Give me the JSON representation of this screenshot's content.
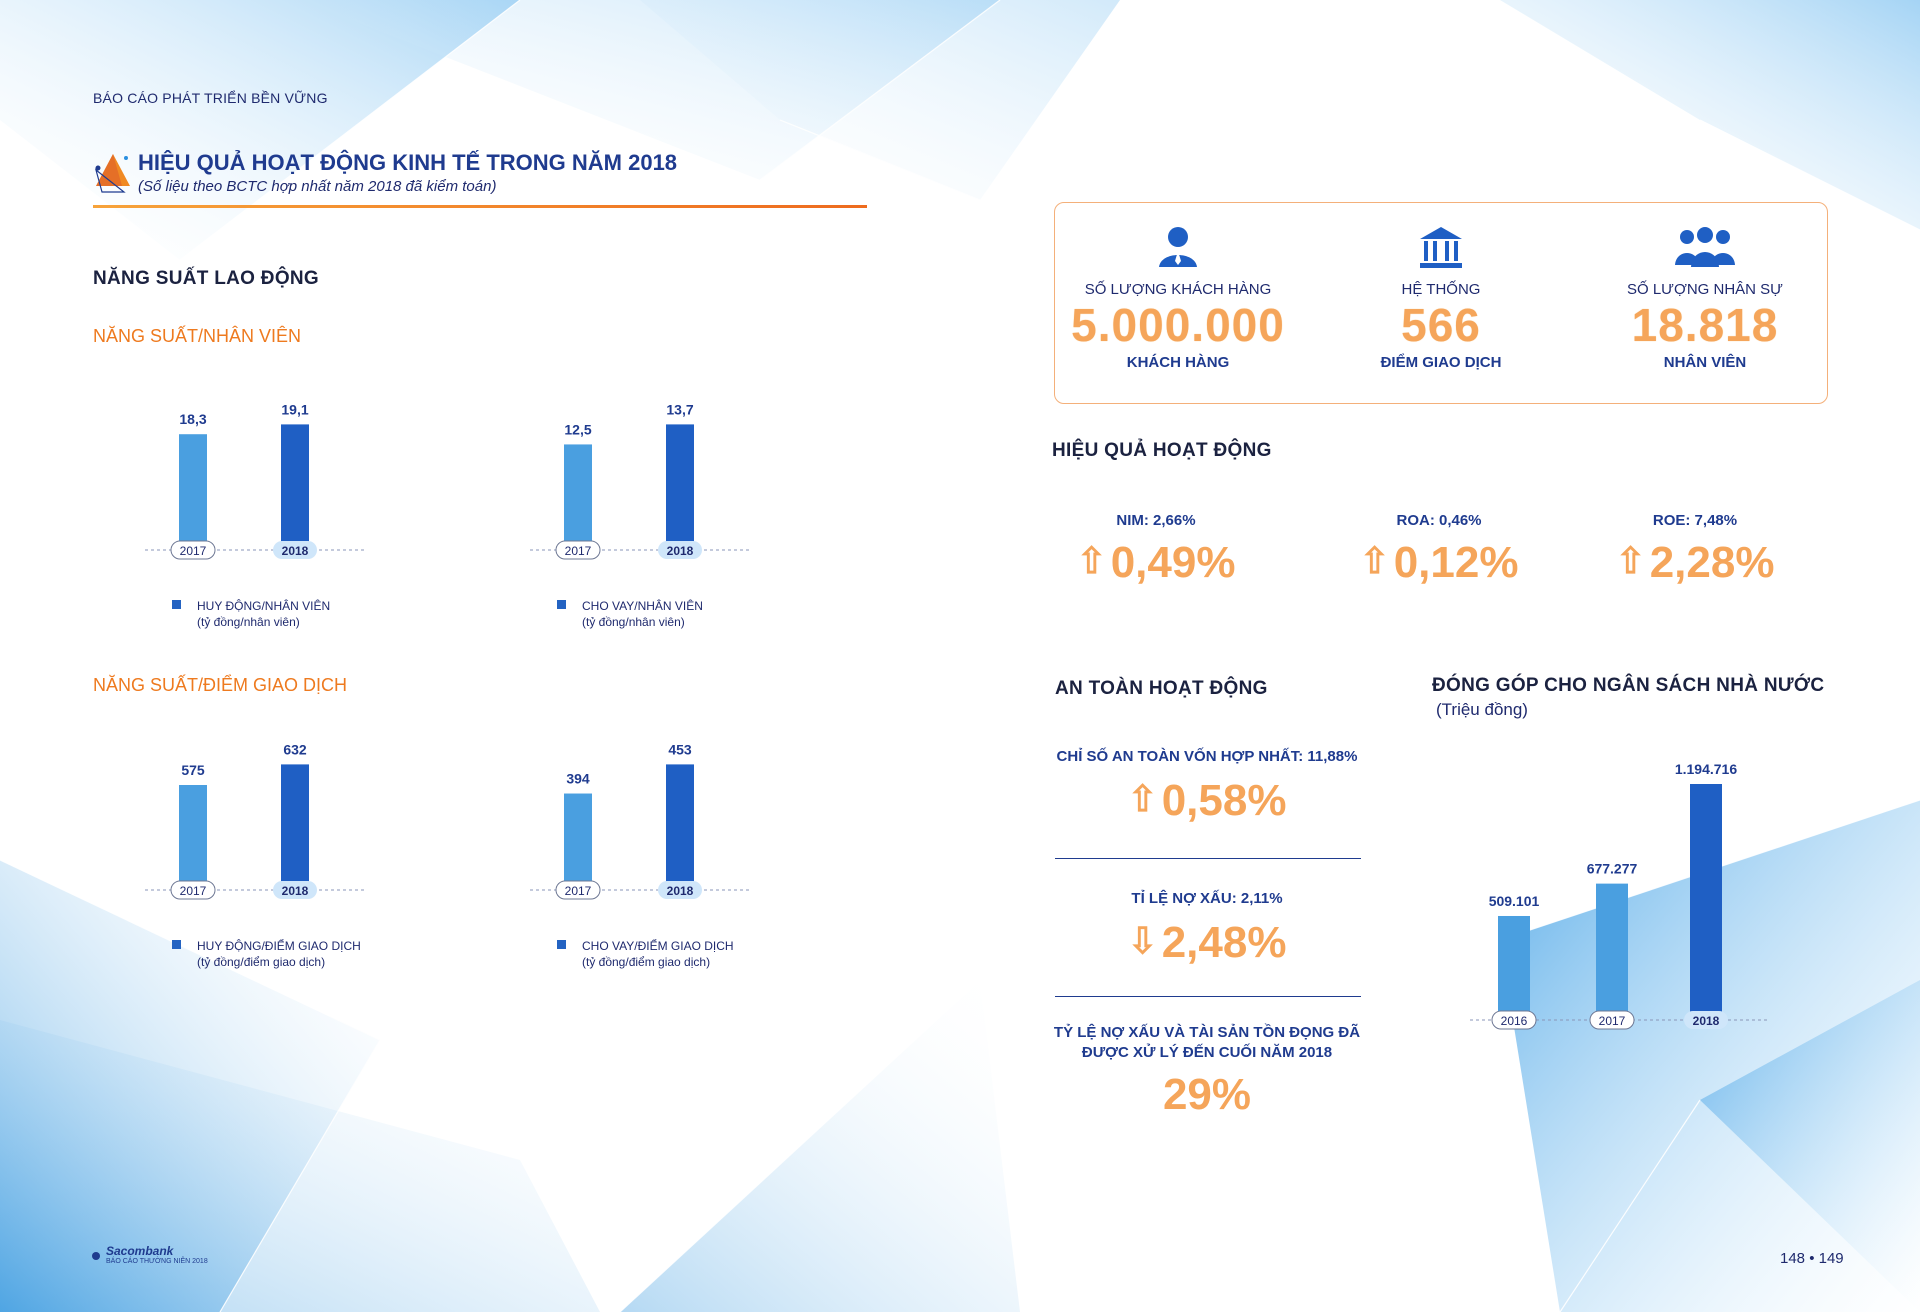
{
  "header": {
    "kicker": "BÁO CÁO PHÁT TRIỂN BỀN VỮNG",
    "title": "HIỆU QUẢ HOẠT ĐỘNG KINH TẾ TRONG NĂM 2018",
    "subtitle": "(Số liệu theo BCTC hợp nhất năm 2018 đã kiểm toán)"
  },
  "labor": {
    "heading": "NĂNG SUẤT LAO ĐỘNG",
    "per_employee_heading": "NĂNG SUẤT/NHÂN VIÊN",
    "per_branch_heading": "NĂNG SUẤT/ĐIỂM GIAO DỊCH"
  },
  "chart_data": [
    {
      "type": "bar",
      "categories": [
        "2017",
        "2018"
      ],
      "values": [
        18.3,
        19.1
      ],
      "value_labels": [
        "18,3",
        "19,1"
      ],
      "legend": "HUY ĐỘNG/NHÂN VIÊN",
      "unit": "(tỷ đồng/nhân viên)"
    },
    {
      "type": "bar",
      "categories": [
        "2017",
        "2018"
      ],
      "values": [
        12.5,
        13.7
      ],
      "value_labels": [
        "12,5",
        "13,7"
      ],
      "legend": "CHO VAY/NHÂN VIÊN",
      "unit": "(tỷ đồng/nhân viên)"
    },
    {
      "type": "bar",
      "categories": [
        "2017",
        "2018"
      ],
      "values": [
        575,
        632
      ],
      "value_labels": [
        "575",
        "632"
      ],
      "legend": "HUY ĐỘNG/ĐIỂM GIAO DỊCH",
      "unit": "(tỷ đồng/điểm giao dịch)"
    },
    {
      "type": "bar",
      "categories": [
        "2017",
        "2018"
      ],
      "values": [
        394,
        453
      ],
      "value_labels": [
        "394",
        "453"
      ],
      "legend": "CHO VAY/ĐIỂM GIAO DỊCH",
      "unit": "(tỷ đồng/điểm giao dịch)"
    },
    {
      "type": "bar",
      "title": "ĐÓNG GÓP CHO NGÂN SÁCH NHÀ NƯỚC",
      "unit": "(Triệu đồng)",
      "categories": [
        "2016",
        "2017",
        "2018"
      ],
      "values": [
        509101,
        677277,
        1194716
      ],
      "value_labels": [
        "509.101",
        "677.277",
        "1.194.716"
      ]
    }
  ],
  "kpis": [
    {
      "icon": "customer-icon",
      "label": "SỐ LƯỢNG KHÁCH HÀNG",
      "value": "5.000.000",
      "caption": "KHÁCH HÀNG"
    },
    {
      "icon": "bank-building-icon",
      "label": "HỆ THỐNG",
      "value": "566",
      "caption": "ĐIỂM GIAO DỊCH"
    },
    {
      "icon": "staff-group-icon",
      "label": "SỐ LƯỢNG NHÂN SỰ",
      "value": "18.818",
      "caption": "NHÂN VIÊN"
    }
  ],
  "performance": {
    "heading": "HIỆU QUẢ HOẠT ĐỘNG",
    "items": [
      {
        "label": "NIM: 2,66%",
        "change": "0,49%",
        "direction": "up"
      },
      {
        "label": "ROA: 0,46%",
        "change": "0,12%",
        "direction": "up"
      },
      {
        "label": "ROE: 7,48%",
        "change": "2,28%",
        "direction": "up"
      }
    ]
  },
  "safety": {
    "heading": "AN TOÀN HOẠT ĐỘNG",
    "items": [
      {
        "label": "CHỈ SỐ AN TOÀN VỐN HỢP NHẤT: 11,88%",
        "change": "0,58%",
        "arrow": "⇧"
      },
      {
        "label": "TỈ LỆ NỢ XẤU: 2,11%",
        "change": "2,48%",
        "arrow": "⇩"
      },
      {
        "label": "TỶ LỆ NỢ XẤU VÀ TÀI SẢN TỒN ĐỌNG ĐÃ ĐƯỢC XỬ LÝ ĐẾN CUỐI NĂM 2018",
        "change": "29%",
        "arrow": ""
      }
    ]
  },
  "budget": {
    "heading": "ĐÓNG GÓP CHO NGÂN SÁCH NHÀ NƯỚC",
    "unit": "(Triệu đồng)"
  },
  "footer": {
    "brand": "Sacombank",
    "sub": "BÁO CÁO THƯỜNG NIÊN 2018",
    "pages": "148 • 149"
  },
  "colors": {
    "bar_light": "#4a9fe0",
    "bar_dark": "#1f5fc4",
    "accent_orange": "#f5a55a",
    "navy": "#1f3b8f"
  }
}
